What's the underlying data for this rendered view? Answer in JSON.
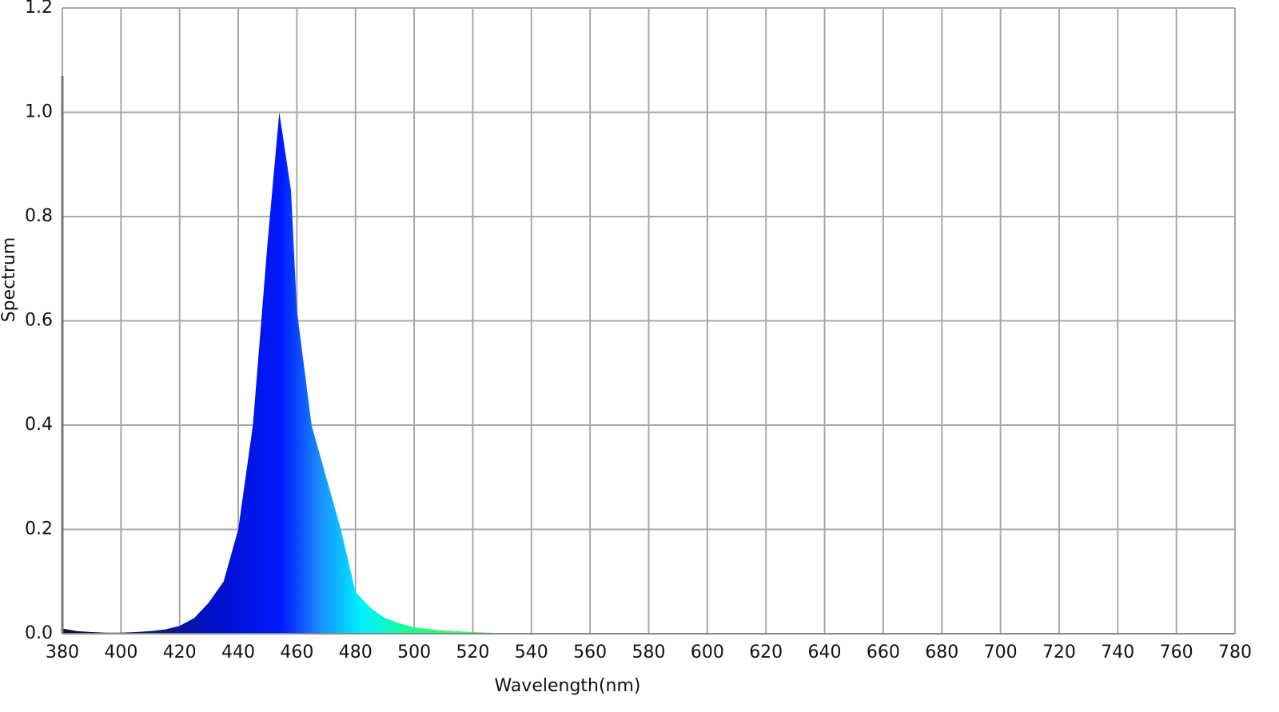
{
  "chart_data": {
    "type": "area",
    "x_label": "Wavelength(nm)",
    "y_label": "Spectrum",
    "x": [
      380,
      385,
      390,
      395,
      400,
      405,
      410,
      415,
      420,
      425,
      430,
      435,
      440,
      445,
      450,
      454,
      458,
      460,
      465,
      470,
      475,
      480,
      485,
      490,
      495,
      500,
      510,
      520,
      530,
      540,
      560
    ],
    "values": [
      0.01,
      0.005,
      0.003,
      0.002,
      0.002,
      0.003,
      0.005,
      0.008,
      0.015,
      0.03,
      0.06,
      0.1,
      0.2,
      0.4,
      0.75,
      1.0,
      0.85,
      0.62,
      0.4,
      0.3,
      0.2,
      0.08,
      0.05,
      0.03,
      0.02,
      0.012,
      0.006,
      0.003,
      0.001,
      0,
      0
    ],
    "xlim": [
      380,
      780
    ],
    "xticks": [
      380,
      400,
      420,
      440,
      460,
      480,
      500,
      520,
      540,
      560,
      580,
      600,
      620,
      640,
      660,
      680,
      700,
      720,
      740,
      760,
      780
    ],
    "ylim": [
      0,
      1.2
    ],
    "yticks": [
      {
        "value": 0,
        "label": "0.0"
      },
      0.2,
      0.4,
      0.6,
      0.8,
      {
        "value": 1,
        "label": "1.0"
      },
      1.2
    ],
    "grid": true
  }
}
